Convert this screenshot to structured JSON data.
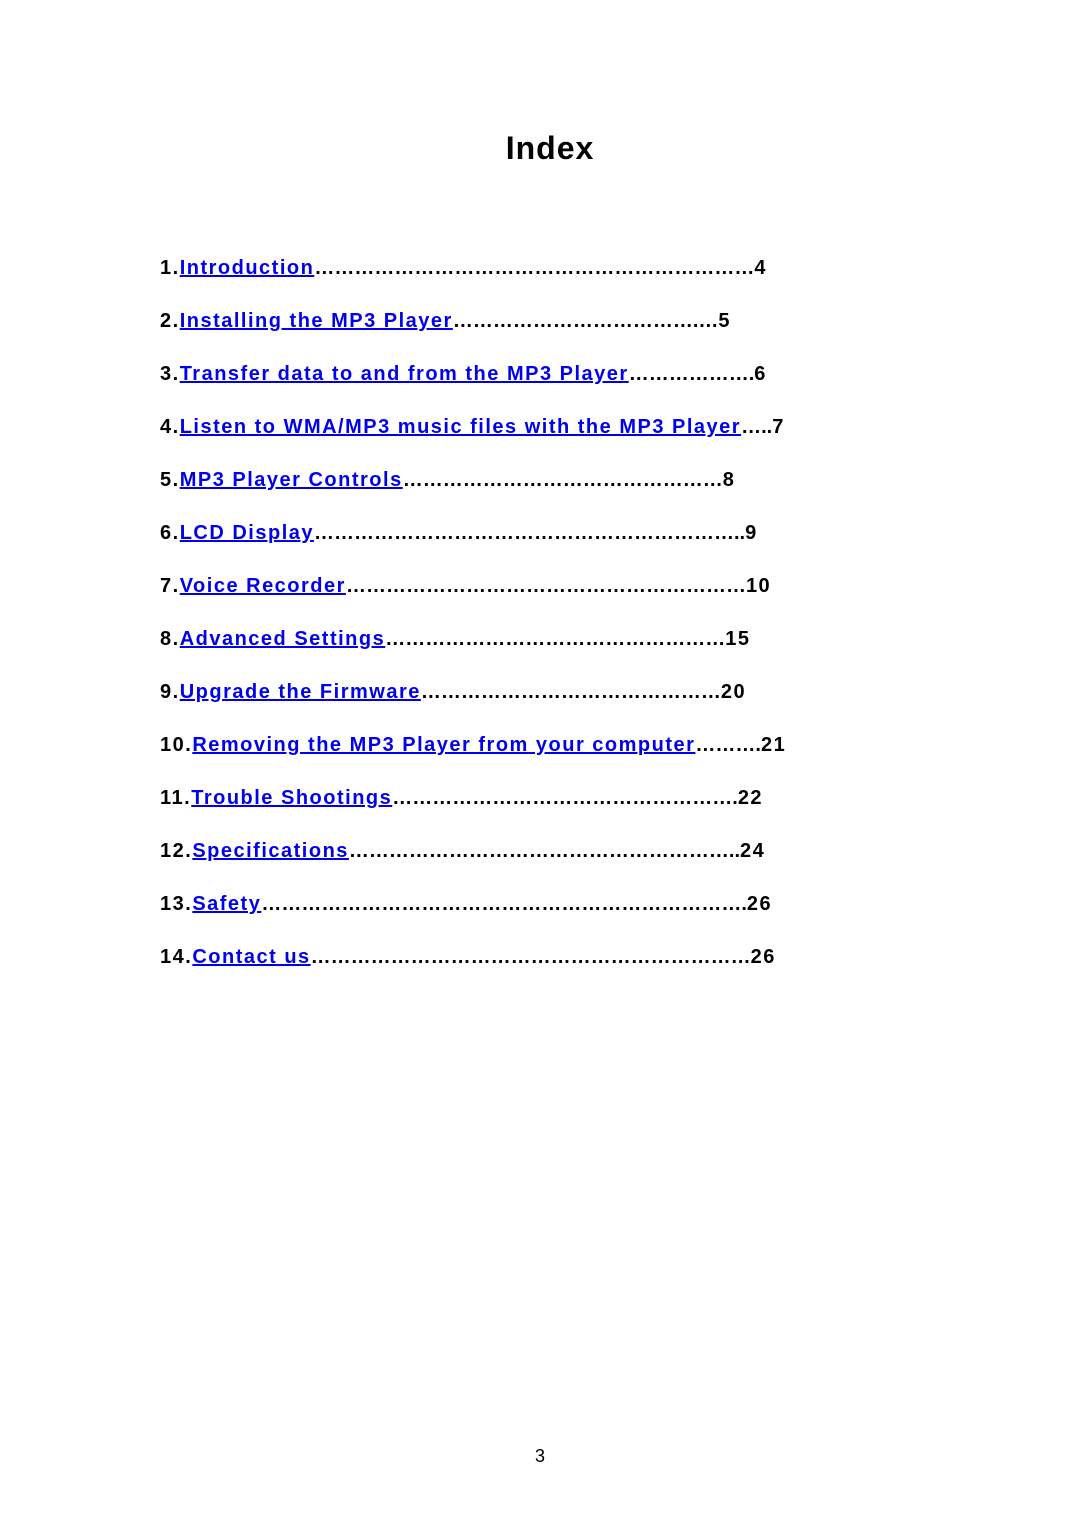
{
  "title": "Index",
  "items": [
    {
      "num": "1.",
      "label": "Introduction",
      "space": " ",
      "dots": "…………………………………………………………",
      "page": "4"
    },
    {
      "num": "2.",
      "label": "Installing the MP3 Player",
      "space": "",
      "dots": "……………………………….…",
      "page": "5"
    },
    {
      "num": "3.",
      "label": "Transfer data to and from the MP3 Player",
      "space": "",
      "dots": "……………….",
      "page": "6"
    },
    {
      "num": "4.",
      "label": "Listen to WMA/MP3 music files with the MP3 Player",
      "space": "",
      "dots": "…..",
      "page": "7"
    },
    {
      "num": "5.",
      "label": "MP3 Player Controls",
      "space": "",
      "dots": "…………………………………………",
      "page": "8"
    },
    {
      "num": "6.",
      "label": "LCD Display",
      "space": " ",
      "dots": "………………………………………………………..",
      "page": "9"
    },
    {
      "num": "7.",
      "label": "Voice Recorder",
      "space": "",
      "dots": "……………………………………………………",
      "page": "10"
    },
    {
      "num": "8.",
      "label": "Advanced Settings",
      "space": "",
      "dots": "……………………………………………",
      "page": "15"
    },
    {
      "num": "9.",
      "label": "Upgrade the Firmware",
      "space": "",
      "dots": "………………………………………",
      "page": "20"
    },
    {
      "num": "10.",
      "label": "Removing the MP3 Player from your computer",
      "space": "",
      "dots": "……….",
      "page": "21"
    },
    {
      "num": "11.",
      "label": "Trouble Shootings",
      "space": " ",
      "dots": "…………………………………………….",
      "page": "22"
    },
    {
      "num": "12.",
      "label": "Specifications",
      "space": " ",
      "dots": "…………………………………………………..",
      "page": "24"
    },
    {
      "num": "13.",
      "label": "Safety",
      "space": "",
      "dots": "……………………………………………………………….",
      "page": "26"
    },
    {
      "num": "14.",
      "label": "Contact us",
      "space": "",
      "dots": "…………………………………………………………",
      "page": "26"
    }
  ],
  "pageNumber": "3",
  "colors": {
    "link": "#0000ee",
    "text": "#000000",
    "background": "#ffffff"
  },
  "fonts": {
    "title_size": 32,
    "item_size": 20,
    "page_num_size": 18
  }
}
